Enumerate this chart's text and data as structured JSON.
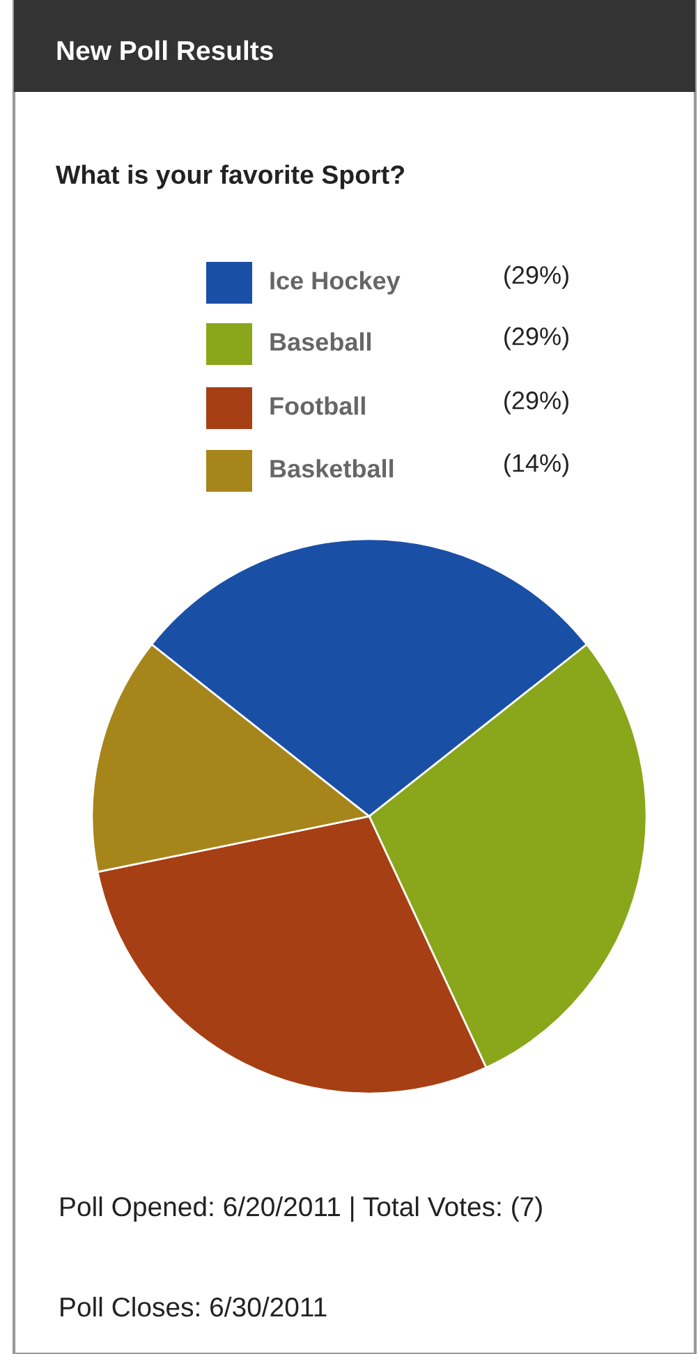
{
  "chart_data": {
    "type": "pie",
    "title": "New Poll Results",
    "subtitle": "What is your favorite Sport?",
    "categories": [
      "Ice Hockey",
      "Baseball",
      "Football",
      "Basketball"
    ],
    "values": [
      29,
      29,
      29,
      14
    ],
    "value_labels": [
      "(29%)",
      "(29%)",
      "(29%)",
      "(14%)"
    ],
    "colors": [
      "#1a4fa6",
      "#8aa61a",
      "#a63f14",
      "#a6861a"
    ],
    "legend": "top",
    "annotations": [
      "Poll Opened: 6/20/2011 | Total Votes: (7)",
      "Poll Closes: 6/30/2011"
    ]
  }
}
